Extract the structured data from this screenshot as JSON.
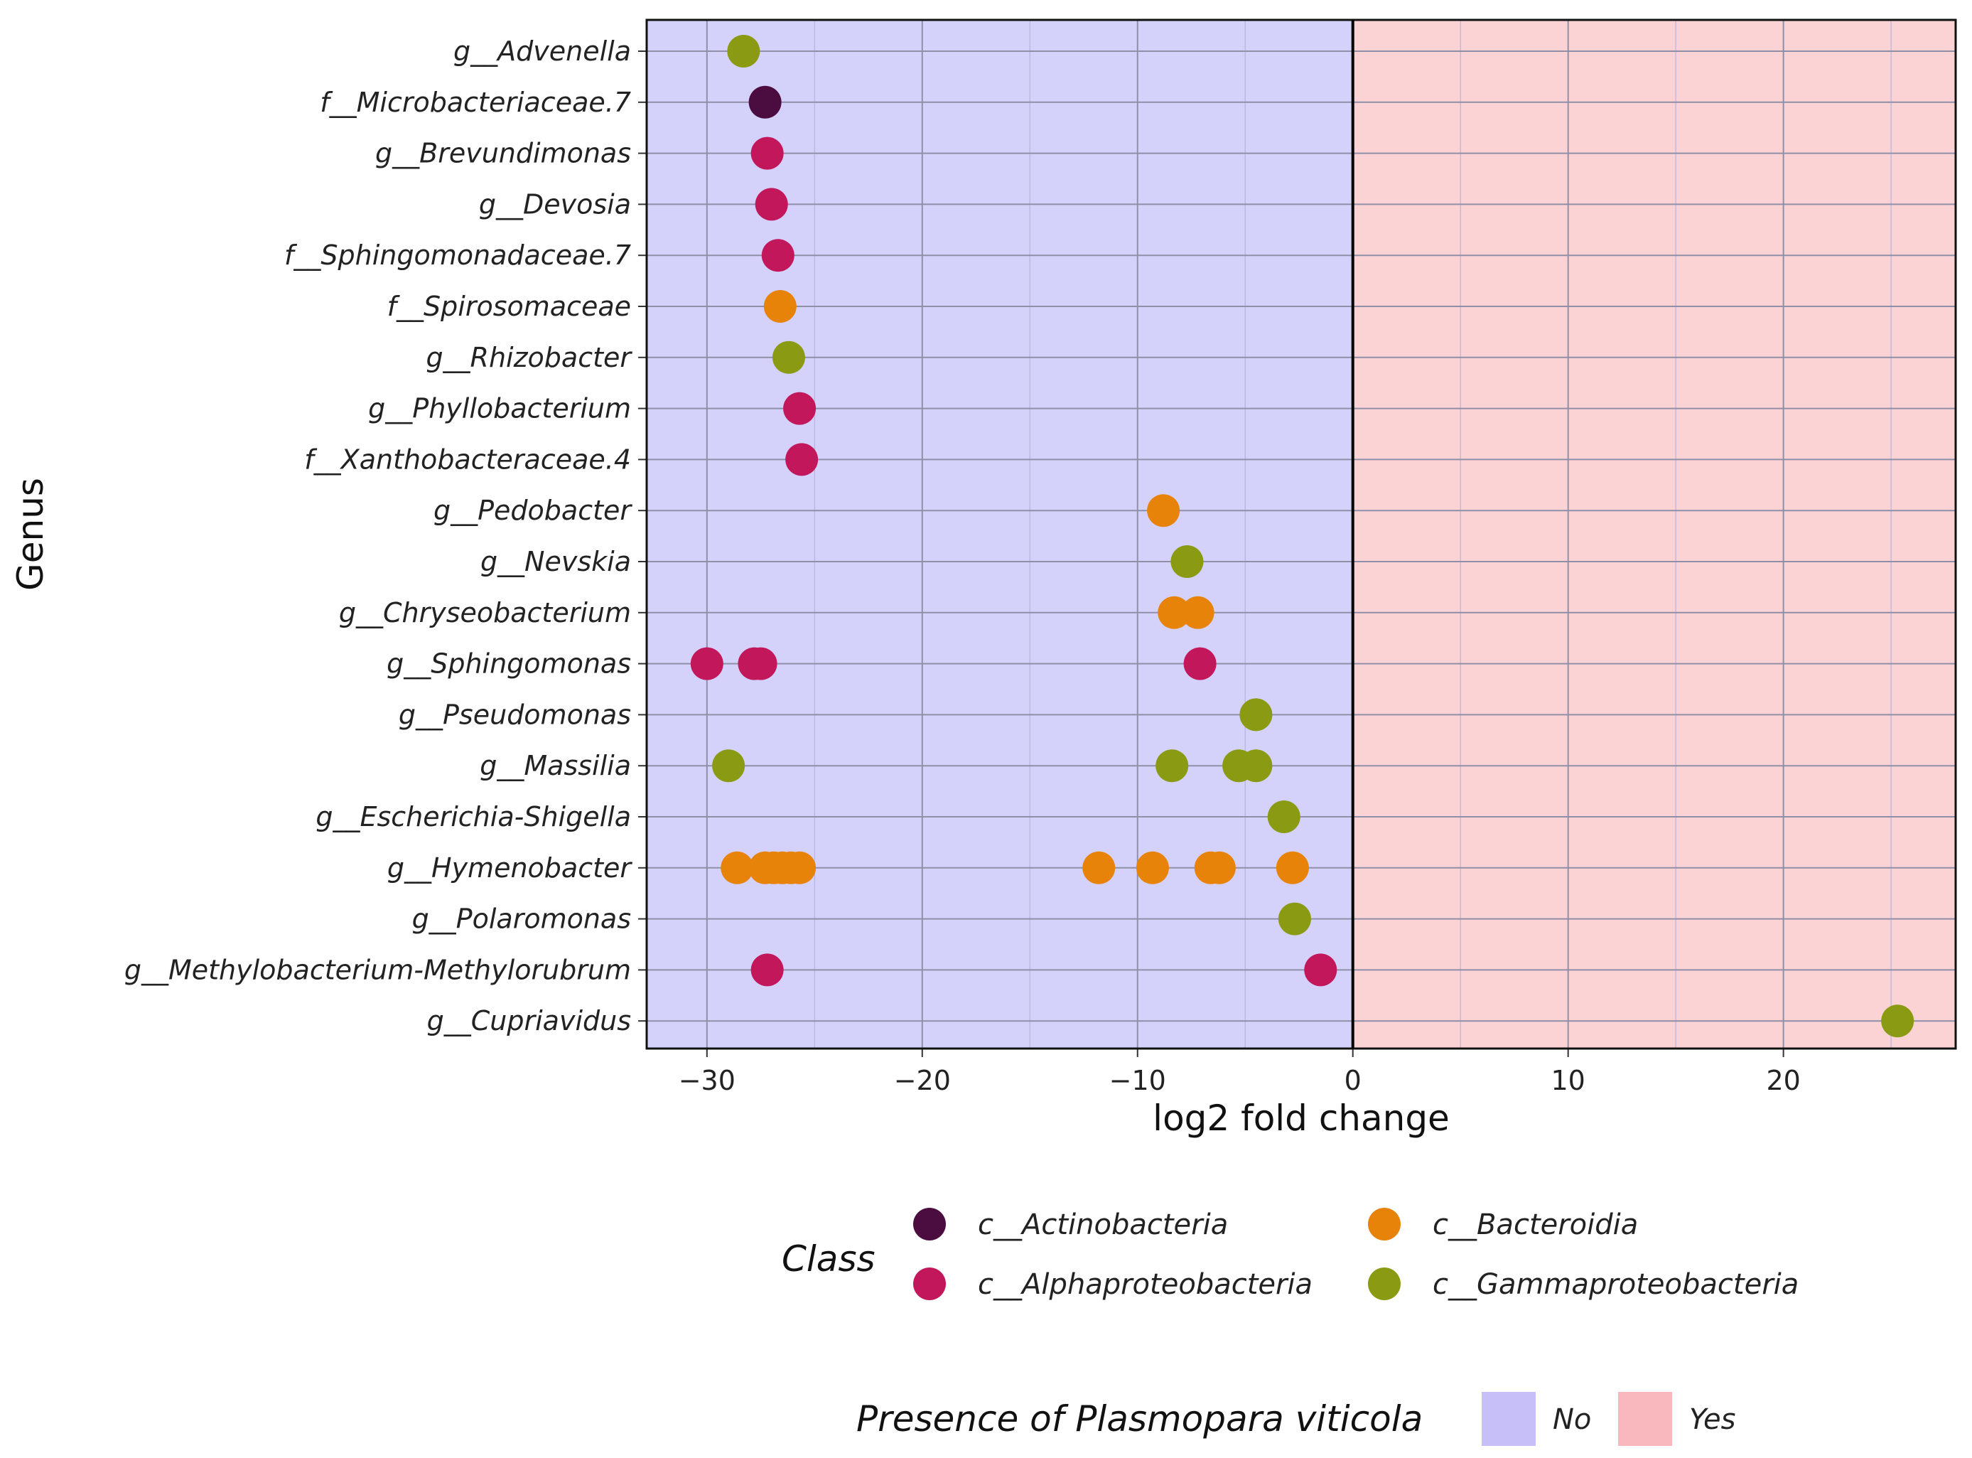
{
  "chart_data": {
    "type": "scatter",
    "xlabel": "log2 fold change",
    "ylabel": "Genus",
    "xlim": [
      -32.8,
      28.0
    ],
    "x_ticks": [
      -30,
      -20,
      -10,
      0,
      10,
      20
    ],
    "x_tick_labels": [
      "−30",
      "−20",
      "−10",
      "0",
      "10",
      "20"
    ],
    "grid": true,
    "background_regions": [
      {
        "label": "No",
        "range": [
          -32.8,
          0
        ],
        "color": "#d4d2fb"
      },
      {
        "label": "Yes",
        "range": [
          0,
          28.0
        ],
        "color": "#fcd3d5"
      }
    ],
    "categories": [
      "g__Advenella",
      "f__Microbacteriaceae.7",
      "g__Brevundimonas",
      "g__Devosia",
      "f__Sphingomonadaceae.7",
      "f__Spirosomaceae",
      "g__Rhizobacter",
      "g__Phyllobacterium",
      "f__Xanthobacteraceae.4",
      "g__Pedobacter",
      "g__Nevskia",
      "g__Chryseobacterium",
      "g__Sphingomonas",
      "g__Pseudomonas",
      "g__Massilia",
      "g__Escherichia-Shigella",
      "g__Hymenobacter",
      "g__Polaromonas",
      "g__Methylobacterium-Methylorubrum",
      "g__Cupriavidus"
    ],
    "series": [
      {
        "name": "c__Actinobacteria",
        "color": "#4b0c40",
        "points": [
          {
            "y": "f__Microbacteriaceae.7",
            "x": -27.3
          }
        ]
      },
      {
        "name": "c__Alphaproteobacteria",
        "color": "#c2185b",
        "points": [
          {
            "y": "g__Brevundimonas",
            "x": -27.2
          },
          {
            "y": "g__Devosia",
            "x": -27.0
          },
          {
            "y": "f__Sphingomonadaceae.7",
            "x": -26.7
          },
          {
            "y": "g__Phyllobacterium",
            "x": -25.7
          },
          {
            "y": "f__Xanthobacteraceae.4",
            "x": -25.6
          },
          {
            "y": "g__Sphingomonas",
            "x": -30.0
          },
          {
            "y": "g__Sphingomonas",
            "x": -27.8
          },
          {
            "y": "g__Sphingomonas",
            "x": -27.5
          },
          {
            "y": "g__Sphingomonas",
            "x": -7.1
          },
          {
            "y": "g__Methylobacterium-Methylorubrum",
            "x": -27.2
          },
          {
            "y": "g__Methylobacterium-Methylorubrum",
            "x": -1.5
          }
        ]
      },
      {
        "name": "c__Bacteroidia",
        "color": "#e8830a",
        "points": [
          {
            "y": "f__Spirosomaceae",
            "x": -26.6
          },
          {
            "y": "g__Pedobacter",
            "x": -8.8
          },
          {
            "y": "g__Chryseobacterium",
            "x": -8.3
          },
          {
            "y": "g__Chryseobacterium",
            "x": -7.2
          },
          {
            "y": "g__Hymenobacter",
            "x": -28.6
          },
          {
            "y": "g__Hymenobacter",
            "x": -27.3
          },
          {
            "y": "g__Hymenobacter",
            "x": -26.9
          },
          {
            "y": "g__Hymenobacter",
            "x": -26.5
          },
          {
            "y": "g__Hymenobacter",
            "x": -26.1
          },
          {
            "y": "g__Hymenobacter",
            "x": -25.7
          },
          {
            "y": "g__Hymenobacter",
            "x": -11.8
          },
          {
            "y": "g__Hymenobacter",
            "x": -9.3
          },
          {
            "y": "g__Hymenobacter",
            "x": -6.6
          },
          {
            "y": "g__Hymenobacter",
            "x": -6.2
          },
          {
            "y": "g__Hymenobacter",
            "x": -2.8
          }
        ]
      },
      {
        "name": "c__Gammaproteobacteria",
        "color": "#8a9a12",
        "points": [
          {
            "y": "g__Advenella",
            "x": -28.3
          },
          {
            "y": "g__Rhizobacter",
            "x": -26.2
          },
          {
            "y": "g__Nevskia",
            "x": -7.7
          },
          {
            "y": "g__Pseudomonas",
            "x": -4.5
          },
          {
            "y": "g__Massilia",
            "x": -29.0
          },
          {
            "y": "g__Massilia",
            "x": -8.4
          },
          {
            "y": "g__Massilia",
            "x": -5.3
          },
          {
            "y": "g__Massilia",
            "x": -4.5
          },
          {
            "y": "g__Escherichia-Shigella",
            "x": -3.2
          },
          {
            "y": "g__Polaromonas",
            "x": -2.7
          },
          {
            "y": "g__Cupriavidus",
            "x": 25.3
          }
        ]
      }
    ],
    "legend": {
      "title": "Class",
      "placement": "bottom",
      "order": [
        "c__Actinobacteria",
        "c__Bacteroidia",
        "c__Alphaproteobacteria",
        "c__Gammaproteobacteria"
      ]
    },
    "fill_legend": {
      "title": "Presence of Plasmopara viticola",
      "placement": "bottom",
      "items": [
        {
          "label": "No",
          "color": "#c6bff8"
        },
        {
          "label": "Yes",
          "color": "#f8b8bd"
        }
      ]
    }
  }
}
